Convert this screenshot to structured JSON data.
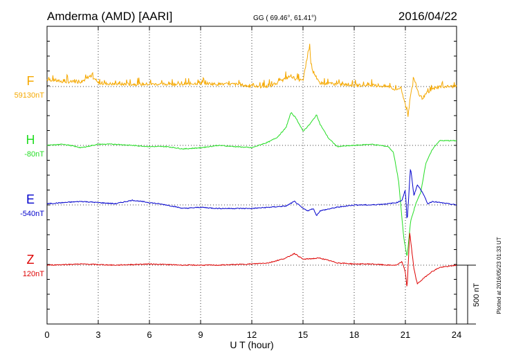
{
  "header": {
    "station": "Amderma (AMD)  [AARI]",
    "coords": "GG ( 69.46°,  61.41°)",
    "date": "2016/04/22"
  },
  "x_axis": {
    "label": "U T (hour)",
    "ticks": [
      "0",
      "3",
      "6",
      "9",
      "12",
      "15",
      "18",
      "21",
      "24"
    ]
  },
  "scale_bar_label": "500 nT",
  "plotted_note": "Plotted at 2016/05/23 01:33 UT",
  "chart_data": {
    "type": "line",
    "title": "Amderma (AMD)  [AARI]",
    "xlabel": "U T (hour)",
    "xlim": [
      0,
      24
    ],
    "x_ticks": [
      0,
      3,
      6,
      9,
      12,
      15,
      18,
      21,
      24
    ],
    "grid": true,
    "scale_nT": 500,
    "series": [
      {
        "name": "F",
        "baseline_label": "59130nT",
        "color": "#f5a800",
        "noisy": true,
        "x": [
          0,
          1,
          2,
          2.5,
          3,
          4,
          5,
          6,
          7,
          8,
          9,
          10,
          11,
          12,
          13,
          13.5,
          14,
          14.3,
          14.6,
          15,
          15.2,
          15.4,
          15.45,
          15.6,
          15.8,
          16,
          17,
          18,
          19,
          20,
          20.4,
          20.7,
          21,
          21.15,
          21.3,
          21.5,
          21.8,
          22,
          22.3,
          22.6,
          23,
          24
        ],
        "values": [
          60,
          40,
          40,
          90,
          30,
          20,
          20,
          20,
          20,
          20,
          30,
          20,
          20,
          0,
          0,
          30,
          70,
          90,
          60,
          50,
          200,
          360,
          210,
          120,
          60,
          30,
          20,
          10,
          10,
          0,
          -30,
          -10,
          -150,
          -250,
          -80,
          70,
          -70,
          -100,
          -50,
          -20,
          0,
          0
        ]
      },
      {
        "name": "H",
        "baseline_label": "-80nT",
        "color": "#22dd22",
        "noisy": false,
        "x": [
          0,
          1,
          2,
          3,
          4,
          5,
          6,
          7,
          8,
          9,
          10,
          11,
          12,
          13,
          13.5,
          14,
          14.3,
          14.6,
          15,
          15.4,
          15.8,
          16,
          16.5,
          17,
          18,
          19,
          20,
          20.3,
          20.6,
          20.9,
          21.1,
          21.3,
          21.6,
          21.9,
          22.2,
          22.6,
          23,
          24
        ],
        "values": [
          0,
          10,
          -20,
          10,
          10,
          0,
          -10,
          -10,
          -30,
          -20,
          0,
          -10,
          -20,
          30,
          70,
          150,
          280,
          230,
          120,
          180,
          260,
          180,
          60,
          -10,
          0,
          10,
          -10,
          -60,
          -300,
          -780,
          -950,
          -650,
          -500,
          -400,
          -150,
          -30,
          40,
          40
        ]
      },
      {
        "name": "E",
        "baseline_label": "-540nT",
        "color": "#0000cc",
        "noisy": false,
        "x": [
          0,
          1,
          2,
          3,
          4,
          5,
          6,
          7,
          8,
          9,
          10,
          11,
          12,
          13,
          14,
          14.5,
          15,
          15.3,
          15.6,
          15.8,
          16,
          17,
          18,
          19,
          20,
          20.5,
          20.8,
          21,
          21.1,
          21.3,
          21.5,
          21.7,
          22,
          22.3,
          22.6,
          23,
          24
        ],
        "values": [
          10,
          20,
          30,
          20,
          10,
          40,
          20,
          0,
          -30,
          -20,
          -30,
          -30,
          -30,
          -20,
          -10,
          30,
          -30,
          -50,
          -30,
          -90,
          -50,
          -20,
          0,
          0,
          10,
          20,
          40,
          130,
          -150,
          320,
          80,
          170,
          110,
          10,
          30,
          20,
          0
        ]
      },
      {
        "name": "Z",
        "baseline_label": "120nT",
        "color": "#dd0000",
        "noisy": false,
        "x": [
          0,
          2,
          4,
          6,
          8,
          10,
          12,
          13,
          14,
          14.5,
          15,
          16,
          17,
          18,
          19,
          20,
          20.5,
          20.8,
          21,
          21.1,
          21.25,
          21.5,
          21.7,
          22,
          22.5,
          23,
          24
        ],
        "values": [
          0,
          10,
          0,
          10,
          0,
          0,
          10,
          20,
          60,
          100,
          50,
          60,
          20,
          10,
          10,
          0,
          0,
          30,
          -60,
          -200,
          280,
          -30,
          -160,
          -120,
          -60,
          -20,
          0
        ]
      }
    ]
  }
}
